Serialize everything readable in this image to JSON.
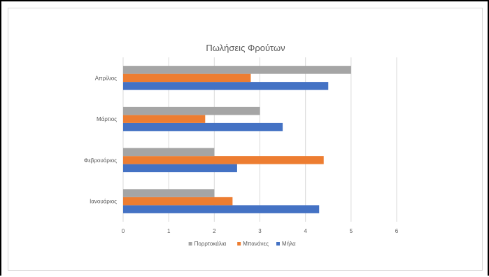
{
  "chart_data": {
    "type": "bar",
    "orientation": "horizontal",
    "title": "Πωλήσεις Φρούτων",
    "categories": [
      "Ιανουάριος",
      "Φεβρουάριος",
      "Μάρτιος",
      "Απρίλιος"
    ],
    "series": [
      {
        "name": "Μήλα",
        "color": "#4472c4",
        "values": [
          4.3,
          2.5,
          3.5,
          4.5
        ]
      },
      {
        "name": "Μπανάνες",
        "color": "#ed7d31",
        "values": [
          2.4,
          4.4,
          1.8,
          2.8
        ]
      },
      {
        "name": "Πορρτοκάλια",
        "color": "#a5a5a5",
        "values": [
          2,
          2,
          3,
          5
        ]
      }
    ],
    "xlim": [
      0,
      6
    ],
    "x_ticks": [
      "0",
      "1",
      "2",
      "3",
      "4",
      "5",
      "6"
    ],
    "grid": true,
    "legend_position": "bottom",
    "legend_order": [
      "Πορρτοκάλια",
      "Μπανάνες",
      "Μήλα"
    ]
  }
}
